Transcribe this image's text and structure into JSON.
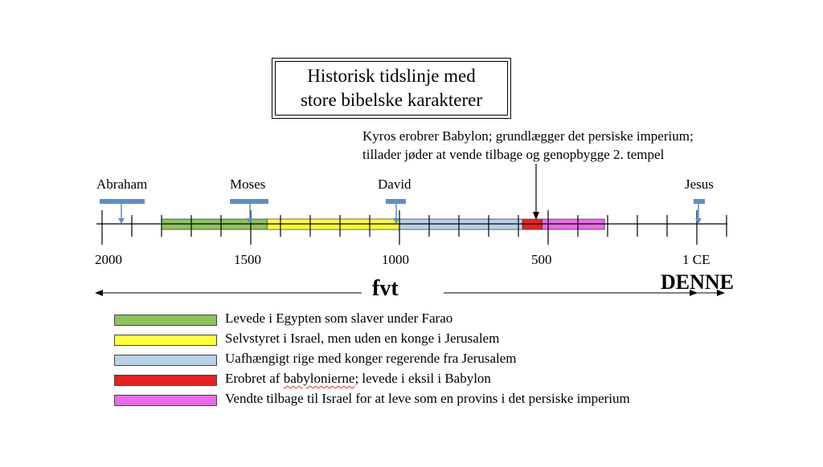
{
  "title": {
    "line1": "Historisk tidslinje med",
    "line2": "store bibelske karakterer"
  },
  "kyros_note": {
    "line1": "Kyros erobrer Babylon; grundlægger det persiske imperium;",
    "line2": "tillader jøder at vende tilbage og genopbygge 2. tempel"
  },
  "people": [
    {
      "name": "Abraham"
    },
    {
      "name": "Moses"
    },
    {
      "name": "David"
    },
    {
      "name": "Jesus"
    }
  ],
  "axis": {
    "labels": [
      "2000",
      "1500",
      "1000",
      "500",
      "1 CE"
    ],
    "bce_label": "fvt",
    "ce_label": "DENNE"
  },
  "periods": [
    {
      "start": 1800,
      "end": 1445,
      "color": "#8bc45a"
    },
    {
      "start": 1445,
      "end": 1000,
      "color": "#ffff3a"
    },
    {
      "start": 1000,
      "end": 586,
      "color": "#b9d0e8"
    },
    {
      "start": 586,
      "end": 520,
      "color": "#e8201e"
    },
    {
      "start": 520,
      "end": 310,
      "color": "#ea6bea"
    }
  ],
  "legend": [
    {
      "color": "#8bc45a",
      "pre": "Levede i Egypten som slaver under Farao",
      "mark": "",
      "post": ""
    },
    {
      "color": "#ffff3a",
      "pre": "Selvstyret i Israel, men uden en konge i Jerusalem",
      "mark": "",
      "post": ""
    },
    {
      "color": "#b9d0e8",
      "pre": "Uafhængigt rige med konger regerende fra Jerusalem",
      "mark": "",
      "post": ""
    },
    {
      "color": "#e8201e",
      "pre": "Erobret af ",
      "mark": "babylonierne",
      "post": "; levede i eksil i Babylon"
    },
    {
      "color": "#ea6bea",
      "pre": "Vendte tilbage til Israel for at leve som en provins i det persiske imperium",
      "mark": "",
      "post": ""
    }
  ],
  "colors": {
    "marker_blue": "#5b8fc7",
    "axis": "#000000"
  }
}
